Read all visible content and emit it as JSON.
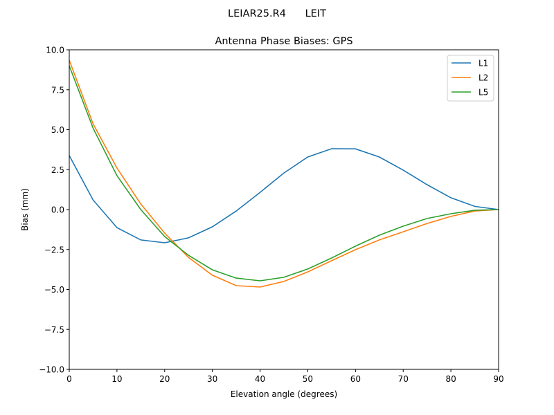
{
  "suptitle": "LEIAR25.R4      LEIT",
  "chart_data": {
    "type": "line",
    "title": "Antenna Phase Biases: GPS",
    "xlabel": "Elevation angle (degrees)",
    "ylabel": "Bias (mm)",
    "xlim": [
      0,
      90
    ],
    "ylim": [
      -10,
      10
    ],
    "xticks": [
      0,
      10,
      20,
      30,
      40,
      50,
      60,
      70,
      80,
      90
    ],
    "yticks": [
      -10.0,
      -7.5,
      -5.0,
      -2.5,
      0.0,
      2.5,
      5.0,
      7.5,
      10.0
    ],
    "ytick_labels": [
      "−10.0",
      "−7.5",
      "−5.0",
      "−2.5",
      "0.0",
      "2.5",
      "5.0",
      "7.5",
      "10.0"
    ],
    "grid": false,
    "legend_position": "top-right",
    "x": [
      0,
      5,
      10,
      15,
      20,
      25,
      30,
      35,
      40,
      45,
      50,
      55,
      60,
      65,
      70,
      75,
      80,
      85,
      90
    ],
    "series": [
      {
        "name": "L1",
        "color": "#1f77b4",
        "values": [
          3.38,
          0.6,
          -1.13,
          -1.9,
          -2.08,
          -1.77,
          -1.08,
          -0.09,
          1.08,
          2.29,
          3.29,
          3.81,
          3.8,
          3.29,
          2.47,
          1.56,
          0.74,
          0.2,
          0.0
        ]
      },
      {
        "name": "L2",
        "color": "#ff7f0e",
        "values": [
          9.35,
          5.37,
          2.6,
          0.35,
          -1.47,
          -2.99,
          -4.11,
          -4.76,
          -4.85,
          -4.5,
          -3.9,
          -3.2,
          -2.51,
          -1.9,
          -1.39,
          -0.87,
          -0.43,
          -0.09,
          0.0
        ]
      },
      {
        "name": "L5",
        "color": "#2ca02c",
        "values": [
          9.0,
          5.1,
          2.12,
          0.0,
          -1.69,
          -2.86,
          -3.77,
          -4.29,
          -4.46,
          -4.24,
          -3.72,
          -3.03,
          -2.29,
          -1.6,
          -1.04,
          -0.56,
          -0.26,
          -0.04,
          0.0
        ]
      }
    ]
  }
}
